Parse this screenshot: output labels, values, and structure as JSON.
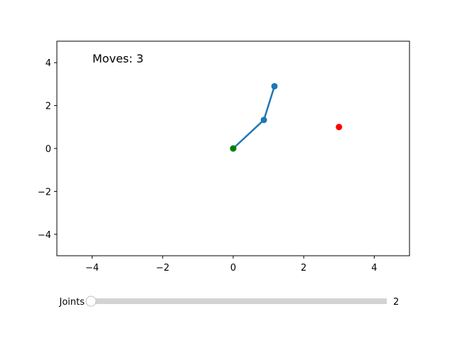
{
  "chart_data": {
    "type": "scatter",
    "xlim": [
      -5,
      5
    ],
    "ylim": [
      -5,
      5
    ],
    "xticks": [
      -4,
      -2,
      0,
      2,
      4
    ],
    "yticks": [
      -4,
      -2,
      0,
      2,
      4
    ],
    "grid": false,
    "annotation": "Moves: 3",
    "series": [
      {
        "kind": "arm",
        "color": "#1f77b4",
        "points": [
          [
            0,
            0
          ],
          [
            0.87,
            1.33
          ],
          [
            1.17,
            2.9
          ]
        ]
      },
      {
        "kind": "base",
        "color": "#008000",
        "points": [
          [
            0,
            0
          ]
        ]
      },
      {
        "kind": "target",
        "color": "#ff0000",
        "points": [
          [
            3,
            1
          ]
        ]
      }
    ]
  },
  "slider": {
    "label": "Joints",
    "value": "2",
    "min": 2,
    "max": 10,
    "current": 2,
    "track_color": "#d3d3d3",
    "handle_color": "#ffffff"
  }
}
